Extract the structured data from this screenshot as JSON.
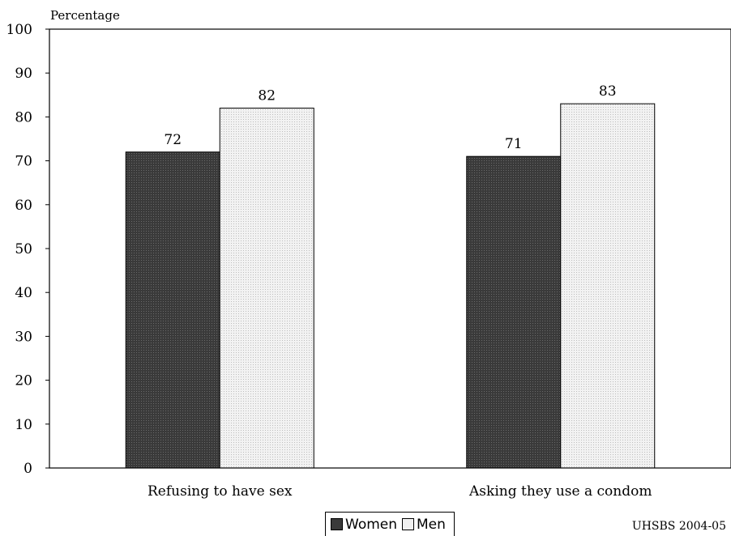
{
  "chart_data": {
    "type": "bar",
    "ylabel": "Percentage",
    "ylim": [
      0,
      100
    ],
    "yticks": [
      0,
      10,
      20,
      30,
      40,
      50,
      60,
      70,
      80,
      90,
      100
    ],
    "categories": [
      "Refusing to have sex",
      "Asking they use a condom"
    ],
    "series": [
      {
        "name": "Women",
        "values": [
          72,
          71
        ],
        "color": "#404040"
      },
      {
        "name": "Men",
        "values": [
          82,
          83
        ],
        "color": "#e8e8e8"
      }
    ],
    "data_labels": true,
    "legend_position": "bottom-center",
    "grid": false
  },
  "source": "UHSBS 2004-05"
}
